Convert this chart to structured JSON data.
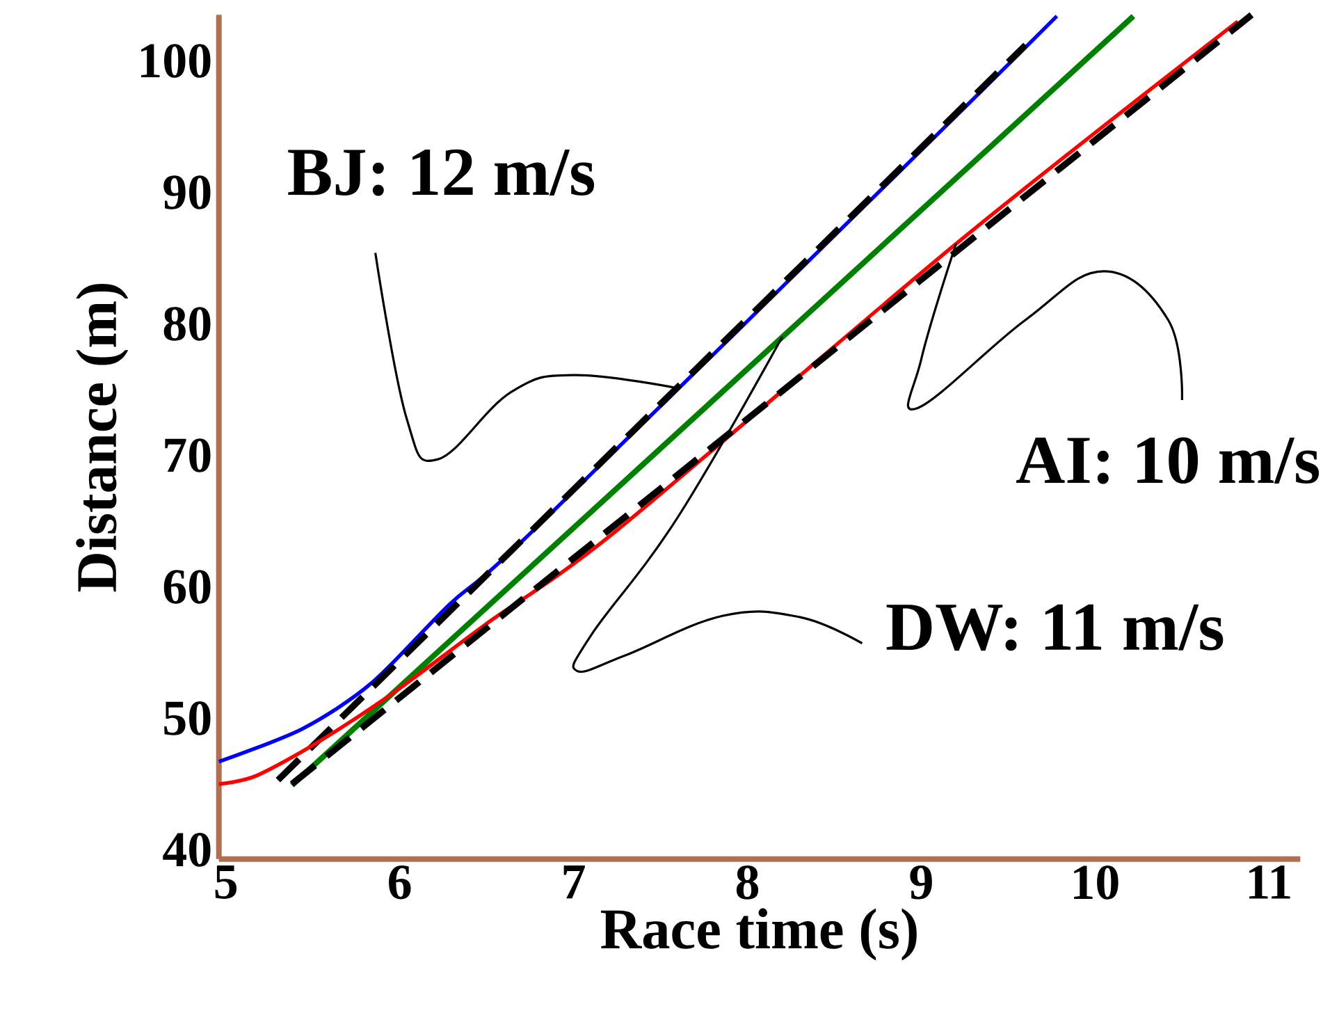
{
  "chart_data": {
    "type": "line",
    "xlabel": "Race time (s)",
    "ylabel": "Distance (m)",
    "xlim": [
      4.96,
      11.18
    ],
    "ylim": [
      39.3,
      103.5
    ],
    "xticks": [
      5,
      6,
      7,
      8,
      9,
      10,
      11
    ],
    "yticks": [
      40,
      50,
      60,
      70,
      80,
      90,
      100
    ],
    "grid": false,
    "marker": "none",
    "series": [
      {
        "color": "#0000ff",
        "x": [
          4.96,
          5.44,
          5.84,
          6.29,
          6.77,
          9.1,
          9.78
        ],
        "values": [
          46.7,
          49.2,
          52.7,
          58.7,
          64.3,
          94.5,
          103.4
        ]
      },
      {
        "color": "#000000",
        "line_style": "dashed",
        "x": [
          5.3,
          9.6
        ],
        "values": [
          45.3,
          101.2
        ]
      },
      {
        "color": "#008000",
        "x": [
          5.38,
          10.22
        ],
        "values": [
          44.9,
          103.4
        ]
      },
      {
        "color": "#ff0000",
        "x": [
          4.96,
          5.17,
          5.52,
          5.97,
          6.5,
          7.25,
          9.22,
          10.82
        ],
        "values": [
          45.0,
          45.6,
          48.1,
          52.0,
          57.2,
          64.3,
          86.3,
          103.0
        ]
      },
      {
        "color": "#000000",
        "line_style": "dashed",
        "x": [
          5.38,
          10.9
        ],
        "values": [
          45.0,
          103.5
        ]
      }
    ],
    "annotations": [
      {
        "text": "BJ: 12 m/s",
        "x": 7.6,
        "y": 75.1
      },
      {
        "text": "AI: 10 m/s",
        "x": 9.2,
        "y": 86.1
      },
      {
        "text": "DW: 11 m/s",
        "x": 8.2,
        "y": 79.0
      }
    ]
  }
}
